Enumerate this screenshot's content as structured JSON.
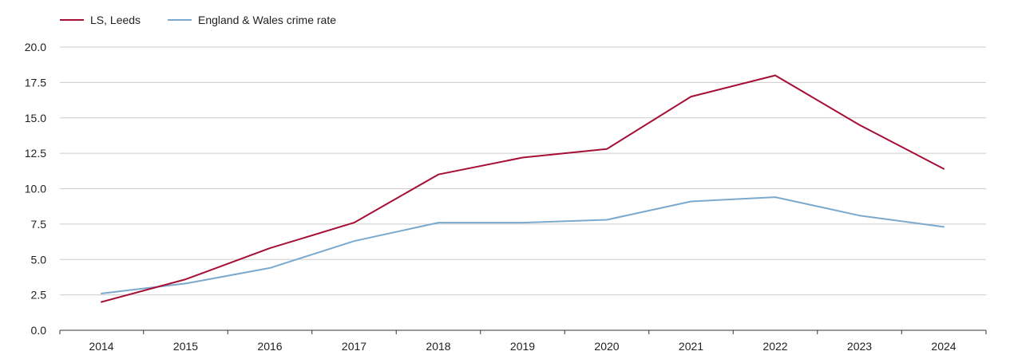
{
  "chart_data": {
    "type": "line",
    "title": "",
    "xlabel": "",
    "ylabel": "",
    "categories": [
      "2014",
      "2015",
      "2016",
      "2017",
      "2018",
      "2019",
      "2020",
      "2021",
      "2022",
      "2023",
      "2024"
    ],
    "y_ticks": [
      "0.0",
      "2.5",
      "5.0",
      "7.5",
      "10.0",
      "12.5",
      "15.0",
      "17.5",
      "20.0"
    ],
    "ylim": [
      0,
      20
    ],
    "grid": true,
    "legend_position": "top-left",
    "series": [
      {
        "name": "LS, Leeds",
        "color": "#a50f35",
        "values": [
          2.0,
          3.6,
          5.8,
          7.6,
          11.0,
          12.2,
          12.8,
          16.5,
          18.0,
          14.5,
          11.4
        ]
      },
      {
        "name": "England & Wales crime rate",
        "color": "#7aa9cd",
        "values": [
          2.6,
          3.3,
          4.4,
          6.3,
          7.6,
          7.6,
          7.8,
          9.1,
          9.4,
          8.1,
          7.3
        ]
      }
    ]
  }
}
